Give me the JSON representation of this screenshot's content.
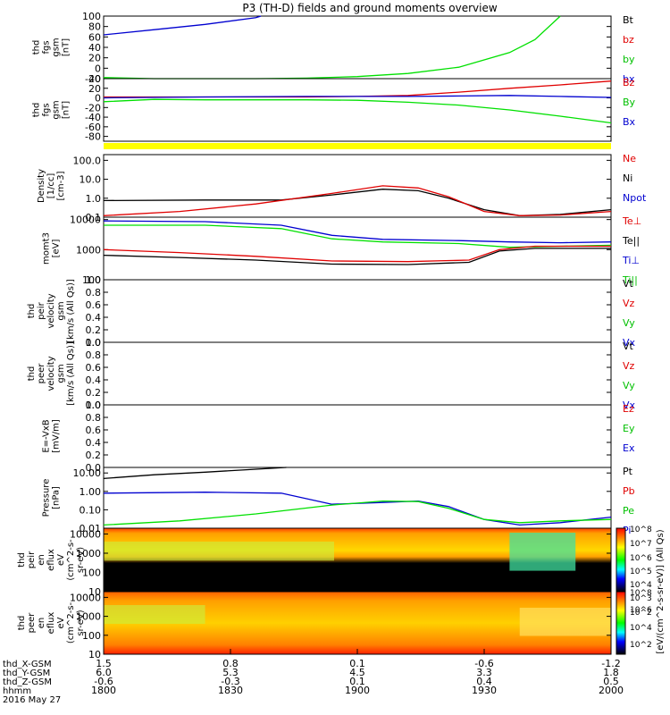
{
  "chart_data": {
    "type": "line",
    "title": "P3 (TH-D) fields and ground moments overview",
    "x_axis": {
      "hhmm": [
        "1800",
        "1830",
        "1900",
        "1930",
        "2000"
      ],
      "x_gsm": [
        "1.5",
        "0.8",
        "0.1",
        "-0.6",
        "-1.2"
      ],
      "y_gsm": [
        "6.0",
        "5.3",
        "4.5",
        "3.3",
        "1.8"
      ],
      "z_gsm": [
        "-0.6",
        "-0.3",
        "0.1",
        "0.4",
        "0.5"
      ],
      "row_labels": [
        "thd_X-GSM",
        "thd_Y-GSM",
        "thd_Z-GSM",
        "hhmm"
      ],
      "date": "2016 May 27"
    },
    "panels": [
      {
        "ylabel": [
          "thd",
          "fgs",
          "gsm",
          "[nT]"
        ],
        "ylim": [
          -20,
          100
        ],
        "ticks": [
          "100",
          "80",
          "60",
          "40",
          "20",
          "0",
          "-20"
        ],
        "legend": [
          {
            "name": "Bt",
            "color": "#000000"
          },
          {
            "name": "bz",
            "color": "#e00000"
          },
          {
            "name": "by",
            "color": "#00c000"
          },
          {
            "name": "bx",
            "color": "#0000d0"
          }
        ],
        "series": [
          {
            "name": "Bt",
            "color": "#0000d0",
            "x": [
              0,
              0.1,
              0.2,
              0.3,
              0.31
            ],
            "y": [
              64,
              74,
              84,
              97,
              100
            ]
          },
          {
            "name": "by",
            "color": "#00e000",
            "x": [
              0,
              0.1,
              0.2,
              0.3,
              0.4,
              0.5,
              0.6,
              0.7,
              0.8,
              0.85,
              0.9
            ],
            "y": [
              -18,
              -20,
              -20,
              -20,
              -19,
              -16,
              -10,
              2,
              30,
              55,
              100
            ]
          }
        ]
      },
      {
        "ylabel": [
          "thd",
          "fgs",
          "gsm",
          "[nT]"
        ],
        "ylim": [
          -90,
          40
        ],
        "ticks": [
          "40",
          "20",
          "0",
          "-20",
          "-40",
          "-60",
          "-80"
        ],
        "legend": [
          {
            "name": "Bz",
            "color": "#e00000"
          },
          {
            "name": "By",
            "color": "#00c000"
          },
          {
            "name": "Bx",
            "color": "#0000d0"
          }
        ],
        "series": [
          {
            "name": "Bz",
            "color": "#e00000",
            "x": [
              0,
              0.2,
              0.4,
              0.5,
              0.6,
              0.7,
              0.8,
              0.9,
              1.0
            ],
            "y": [
              2,
              2,
              2,
              3,
              5,
              12,
              20,
              27,
              35
            ]
          },
          {
            "name": "By",
            "color": "#00e000",
            "x": [
              0,
              0.1,
              0.2,
              0.4,
              0.5,
              0.6,
              0.7,
              0.8,
              0.9,
              1.0
            ],
            "y": [
              -8,
              -3,
              -4,
              -4,
              -5,
              -9,
              -15,
              -25,
              -38,
              -52
            ]
          },
          {
            "name": "Bx",
            "color": "#0000d0",
            "x": [
              0,
              0.2,
              0.4,
              0.6,
              0.7,
              0.8,
              0.9,
              1.0
            ],
            "y": [
              0,
              2,
              3,
              3,
              4,
              5,
              3,
              1
            ]
          }
        ]
      },
      {
        "ylabel": [
          "Density",
          "[1/cc]",
          "[cm-3]"
        ],
        "ylim": [
          0.1,
          200
        ],
        "log": true,
        "ticks": [
          "100.0",
          "10.0",
          "1.0",
          "0.1"
        ],
        "legend": [
          {
            "name": "Ne",
            "color": "#e00000"
          },
          {
            "name": "Ni",
            "color": "#000000"
          },
          {
            "name": "Npot",
            "color": "#0000d0"
          }
        ],
        "series": [
          {
            "name": "Ni",
            "color": "#000000",
            "x": [
              0,
              0.2,
              0.35,
              0.45,
              0.55,
              0.62,
              0.68,
              0.75,
              0.82,
              0.9,
              1.0
            ],
            "y": [
              0.75,
              0.8,
              0.8,
              1.5,
              3.0,
              2.5,
              1.0,
              0.25,
              0.12,
              0.14,
              0.25
            ]
          },
          {
            "name": "Ne",
            "color": "#e00000",
            "x": [
              0,
              0.15,
              0.3,
              0.45,
              0.55,
              0.62,
              0.68,
              0.75,
              0.82,
              0.9,
              1.0
            ],
            "y": [
              0.12,
              0.2,
              0.5,
              1.8,
              4.5,
              3.5,
              1.2,
              0.2,
              0.12,
              0.13,
              0.2
            ]
          }
        ]
      },
      {
        "ylabel": [
          "momt3",
          "[eV]"
        ],
        "ylim": [
          100,
          12000
        ],
        "log": true,
        "ticks": [
          "10000",
          "1000",
          "100"
        ],
        "legend": [
          {
            "name": "Te⊥",
            "color": "#e00000"
          },
          {
            "name": "Te||",
            "color": "#000000"
          },
          {
            "name": "Ti⊥",
            "color": "#0000d0"
          },
          {
            "name": "Ti||",
            "color": "#00c000"
          }
        ],
        "series": [
          {
            "name": "Ti_perp",
            "color": "#0000d0",
            "x": [
              0,
              0.2,
              0.35,
              0.45,
              0.55,
              0.7,
              0.8,
              0.9,
              1.0
            ],
            "y": [
              9000,
              8500,
              6500,
              3000,
              2200,
              2000,
              1800,
              1700,
              1800
            ]
          },
          {
            "name": "Ti_par",
            "color": "#00e000",
            "x": [
              0,
              0.2,
              0.35,
              0.45,
              0.55,
              0.7,
              0.8,
              0.9,
              1.0
            ],
            "y": [
              6500,
              6500,
              5000,
              2300,
              1800,
              1600,
              1200,
              1300,
              1400
            ]
          },
          {
            "name": "Te_perp",
            "color": "#e00000",
            "x": [
              0,
              0.15,
              0.3,
              0.45,
              0.6,
              0.72,
              0.78,
              0.85,
              1.0
            ],
            "y": [
              1000,
              800,
              600,
              420,
              400,
              450,
              1000,
              1300,
              1300
            ]
          },
          {
            "name": "Te_par",
            "color": "#000000",
            "x": [
              0,
              0.15,
              0.3,
              0.45,
              0.6,
              0.72,
              0.78,
              0.85,
              1.0
            ],
            "y": [
              650,
              550,
              450,
              330,
              320,
              380,
              900,
              1100,
              1100
            ]
          }
        ]
      },
      {
        "ylabel": [
          "thd",
          "peir",
          "velocity",
          "gsm",
          "[km/s (All Qs)]"
        ],
        "ylim": [
          0,
          1
        ],
        "ticks": [
          "1.0",
          "0.8",
          "0.6",
          "0.4",
          "0.2",
          "0.0"
        ],
        "legend": [
          {
            "name": "Vt",
            "color": "#000000"
          },
          {
            "name": "Vz",
            "color": "#e00000"
          },
          {
            "name": "Vy",
            "color": "#00c000"
          },
          {
            "name": "Vx",
            "color": "#0000d0"
          }
        ],
        "series": []
      },
      {
        "ylabel": [
          "thd",
          "peer",
          "velocity",
          "gsm",
          "[km/s (All Qs)]"
        ],
        "ylim": [
          0,
          1
        ],
        "ticks": [
          "1.0",
          "0.8",
          "0.6",
          "0.4",
          "0.2",
          "0.0"
        ],
        "legend": [
          {
            "name": "Vt",
            "color": "#000000"
          },
          {
            "name": "Vz",
            "color": "#e00000"
          },
          {
            "name": "Vy",
            "color": "#00c000"
          },
          {
            "name": "Vx",
            "color": "#0000d0"
          }
        ],
        "series": []
      },
      {
        "ylabel": [
          "E=-VxB",
          "[mV/m]"
        ],
        "ylim": [
          0,
          1
        ],
        "ticks": [
          "1.0",
          "0.8",
          "0.6",
          "0.4",
          "0.2",
          "0.0"
        ],
        "legend": [
          {
            "name": "Ez",
            "color": "#e00000"
          },
          {
            "name": "Ey",
            "color": "#00c000"
          },
          {
            "name": "Ex",
            "color": "#0000d0"
          }
        ],
        "series": []
      },
      {
        "ylabel": [
          "Pressure",
          "[nPa]"
        ],
        "ylim": [
          0.01,
          20
        ],
        "log": true,
        "ticks": [
          "10.00",
          "1.00",
          "0.10",
          "0.01"
        ],
        "legend": [
          {
            "name": "Pt",
            "color": "#000000"
          },
          {
            "name": "Pb",
            "color": "#e00000"
          },
          {
            "name": "Pe",
            "color": "#00c000"
          },
          {
            "name": "Pi",
            "color": "#0000d0"
          }
        ],
        "series": [
          {
            "name": "Pt",
            "color": "#000000",
            "x": [
              0,
              0.1,
              0.2,
              0.3,
              0.36
            ],
            "y": [
              5,
              8,
              11,
              16,
              20
            ]
          },
          {
            "name": "Pi",
            "color": "#0000d0",
            "x": [
              0,
              0.2,
              0.35,
              0.45,
              0.55,
              0.62,
              0.68,
              0.75,
              0.82,
              0.9,
              1.0
            ],
            "y": [
              0.8,
              0.9,
              0.8,
              0.2,
              0.25,
              0.3,
              0.15,
              0.03,
              0.015,
              0.02,
              0.04
            ]
          },
          {
            "name": "Pe",
            "color": "#00e000",
            "x": [
              0,
              0.15,
              0.3,
              0.45,
              0.55,
              0.62,
              0.68,
              0.75,
              0.82,
              0.9,
              1.0
            ],
            "y": [
              0.015,
              0.025,
              0.06,
              0.18,
              0.3,
              0.28,
              0.12,
              0.03,
              0.02,
              0.025,
              0.03
            ]
          }
        ]
      },
      {
        "ylabel": [
          "thd",
          "peir",
          "en",
          "eflux",
          "eV",
          "(cm^2-s-",
          "sr-eV)"
        ],
        "ylim": [
          10,
          20000
        ],
        "log": true,
        "ticks": [
          "10000",
          "1000",
          "100",
          "10"
        ],
        "spectrogram": true,
        "series": []
      },
      {
        "ylabel": [
          "thd",
          "peer",
          "en",
          "eflux",
          "eV",
          "(cm^2-s-",
          "sr-eV)"
        ],
        "ylim": [
          10,
          20000
        ],
        "log": true,
        "ticks": [
          "10000",
          "1000",
          "100",
          "10"
        ],
        "spectrogram": true,
        "series": []
      }
    ],
    "colorbar": {
      "tick_labels": [
        "10^8",
        "10^7",
        "10^6",
        "10^5",
        "10^4",
        "10^3",
        "10^2",
        "10^8",
        "10^6",
        "10^4",
        "10^2"
      ],
      "label": "[eV/(cm^2-s-sr-eV)] (All Qs)"
    },
    "yellow_bar_color": "#ffff00"
  }
}
